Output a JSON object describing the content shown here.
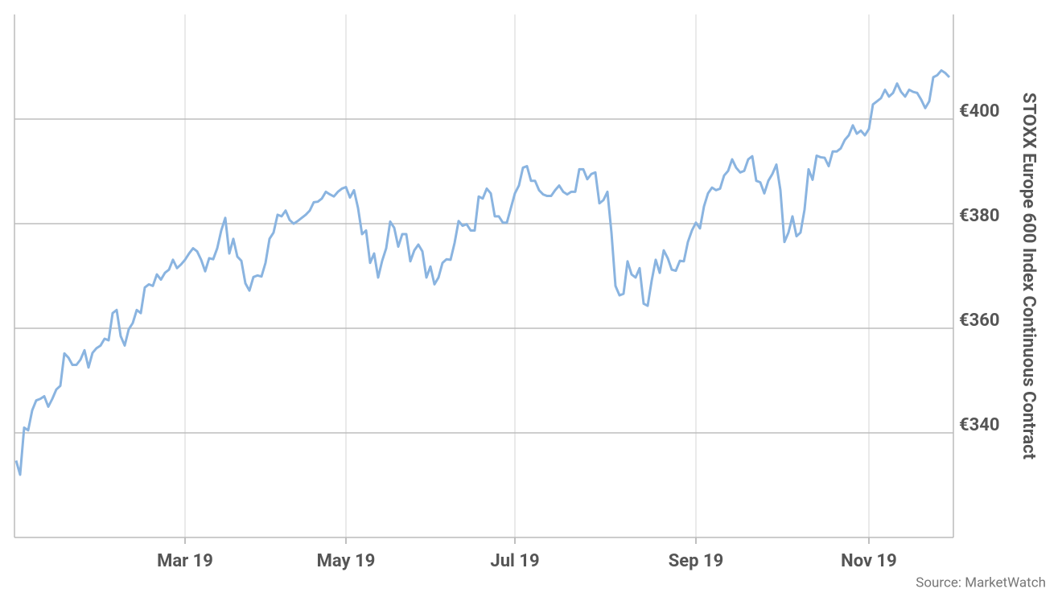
{
  "chart_data": {
    "type": "line",
    "y_label": "STOXX Europe 600 Index Continuous Contract",
    "source": "Source: MarketWatch",
    "color": "#8ab4e0",
    "grid": true,
    "y_axis_side": "right",
    "x": [
      0,
      1,
      2,
      3,
      4,
      5,
      6,
      7,
      8,
      9,
      10,
      11,
      12,
      13,
      14,
      15,
      16,
      17,
      18,
      19,
      20,
      21,
      22,
      23,
      24,
      25,
      26,
      27,
      28,
      29,
      30,
      31,
      32,
      33,
      34,
      35,
      36,
      37,
      38,
      39,
      40,
      41,
      42,
      43,
      44,
      45,
      46,
      47,
      48,
      49,
      50,
      51,
      52,
      53,
      54,
      55,
      56,
      57,
      58,
      59,
      60,
      61,
      62,
      63,
      64,
      65,
      66,
      67,
      68,
      69,
      70,
      71,
      72,
      73,
      74,
      75,
      76,
      77,
      78,
      79,
      80,
      81,
      82,
      83,
      84,
      85,
      86,
      87,
      88,
      89,
      90,
      91,
      92,
      93,
      94,
      95,
      96,
      97,
      98,
      99,
      100,
      101,
      102,
      103,
      104,
      105,
      106,
      107,
      108,
      109,
      110,
      111,
      112,
      113,
      114,
      115,
      116,
      117,
      118,
      119,
      120,
      121,
      122,
      123,
      124,
      125,
      126,
      127,
      128,
      129,
      130,
      131,
      132,
      133,
      134,
      135,
      136,
      137,
      138,
      139,
      140,
      141,
      142,
      143,
      144,
      145,
      146,
      147,
      148,
      149,
      150,
      151,
      152,
      153,
      154,
      155,
      156,
      157,
      158,
      159,
      160,
      161,
      162,
      163,
      164,
      165,
      166,
      167,
      168,
      169,
      170,
      171,
      172,
      173,
      174,
      175,
      176,
      177,
      178,
      179,
      180,
      181,
      182,
      183,
      184,
      185,
      186,
      187,
      188,
      189,
      190,
      191,
      192,
      193,
      194,
      195,
      196,
      197,
      198,
      199,
      200,
      201,
      202,
      203,
      204,
      205,
      206,
      207,
      208,
      209,
      210,
      211,
      212,
      213,
      214,
      215,
      216,
      217,
      218,
      219,
      220,
      221,
      222,
      223,
      224,
      225,
      226,
      227,
      228,
      229,
      230,
      231,
      232
    ],
    "values": [
      334.7,
      332,
      341,
      340.5,
      344.3,
      346.2,
      346.5,
      347,
      345,
      346.5,
      348.3,
      349,
      355.2,
      354.4,
      353,
      353,
      354,
      355.8,
      352.5,
      355.3,
      356.2,
      356.7,
      358,
      357.7,
      362.9,
      363.5,
      358.5,
      356.7,
      359.8,
      361,
      363.5,
      362.9,
      367.8,
      368.4,
      368.1,
      370.3,
      369.3,
      370.6,
      371.2,
      373.1,
      371.5,
      372.2,
      373.1,
      374.3,
      375.3,
      374.7,
      373.1,
      370.9,
      373.4,
      373.2,
      375.3,
      378.7,
      381.1,
      374.3,
      377.1,
      373.7,
      372.9,
      368.6,
      367.2,
      369.8,
      370.1,
      369.9,
      372.5,
      377.1,
      378.3,
      381.7,
      381.4,
      382.5,
      380.7,
      380,
      380.5,
      381.1,
      381.7,
      382.5,
      384.1,
      384.2,
      384.8,
      386.1,
      385.6,
      385.2,
      386.1,
      386.7,
      387,
      385,
      386.4,
      383,
      378,
      378.7,
      372.5,
      374.3,
      369.7,
      372.9,
      375.3,
      380.4,
      379.2,
      375.6,
      378,
      378,
      372.8,
      374.9,
      376,
      374.7,
      369.7,
      371.8,
      368.4,
      369.7,
      372.5,
      373.2,
      373.1,
      376.3,
      380.5,
      379.6,
      379.9,
      378.7,
      378.7,
      385.2,
      384.8,
      386.7,
      385.8,
      381.4,
      381.4,
      380.2,
      380.2,
      383,
      385.8,
      387.3,
      390.7,
      391,
      388.2,
      388.2,
      386.4,
      385.6,
      385.3,
      385.3,
      386.4,
      387.3,
      386.1,
      385.6,
      386.1,
      386.1,
      390.4,
      390.4,
      388.5,
      389.5,
      389.8,
      383.9,
      384.5,
      386.1,
      378.3,
      368.1,
      366.3,
      366.6,
      372.8,
      370.3,
      369.7,
      371.5,
      364.7,
      364.3,
      369.1,
      373.1,
      370.6,
      374.9,
      373.4,
      371.2,
      371,
      372.9,
      372.8,
      376.5,
      378.7,
      380.2,
      379.1,
      383.3,
      385.8,
      386.9,
      386.4,
      386.7,
      389.2,
      390.1,
      392.3,
      390.7,
      389.8,
      390.1,
      392.3,
      392.9,
      388.2,
      387.9,
      385.8,
      388.2,
      389.5,
      391.3,
      386.4,
      376.5,
      378.3,
      381.4,
      377.6,
      378.3,
      382.7,
      390.4,
      388.4,
      393,
      392.7,
      392.6,
      391,
      393.8,
      393.8,
      394.4,
      396,
      396.9,
      398.8,
      397.2,
      397.8,
      396.9,
      398.1,
      402.8,
      403.4,
      404,
      405.6,
      404.3,
      405,
      406.8,
      405.2,
      404.3,
      405.6,
      405.2,
      405,
      403.7,
      402.1,
      403.4,
      408,
      408.4,
      409.3,
      408.8,
      408
    ],
    "xlim": [
      -0.4,
      233
    ],
    "xticks": [
      {
        "value": 42,
        "label": "Mar 19"
      },
      {
        "value": 82,
        "label": "May 19"
      },
      {
        "value": 124,
        "label": "Jul 19"
      },
      {
        "value": 169,
        "label": "Sep 19"
      },
      {
        "value": 212,
        "label": "Nov 19"
      }
    ],
    "ylim": [
      320,
      420
    ],
    "yticks": [
      {
        "value": 340,
        "label": "€340"
      },
      {
        "value": 360,
        "label": "€360"
      },
      {
        "value": 380,
        "label": "€380"
      },
      {
        "value": 400,
        "label": "€400"
      }
    ]
  }
}
